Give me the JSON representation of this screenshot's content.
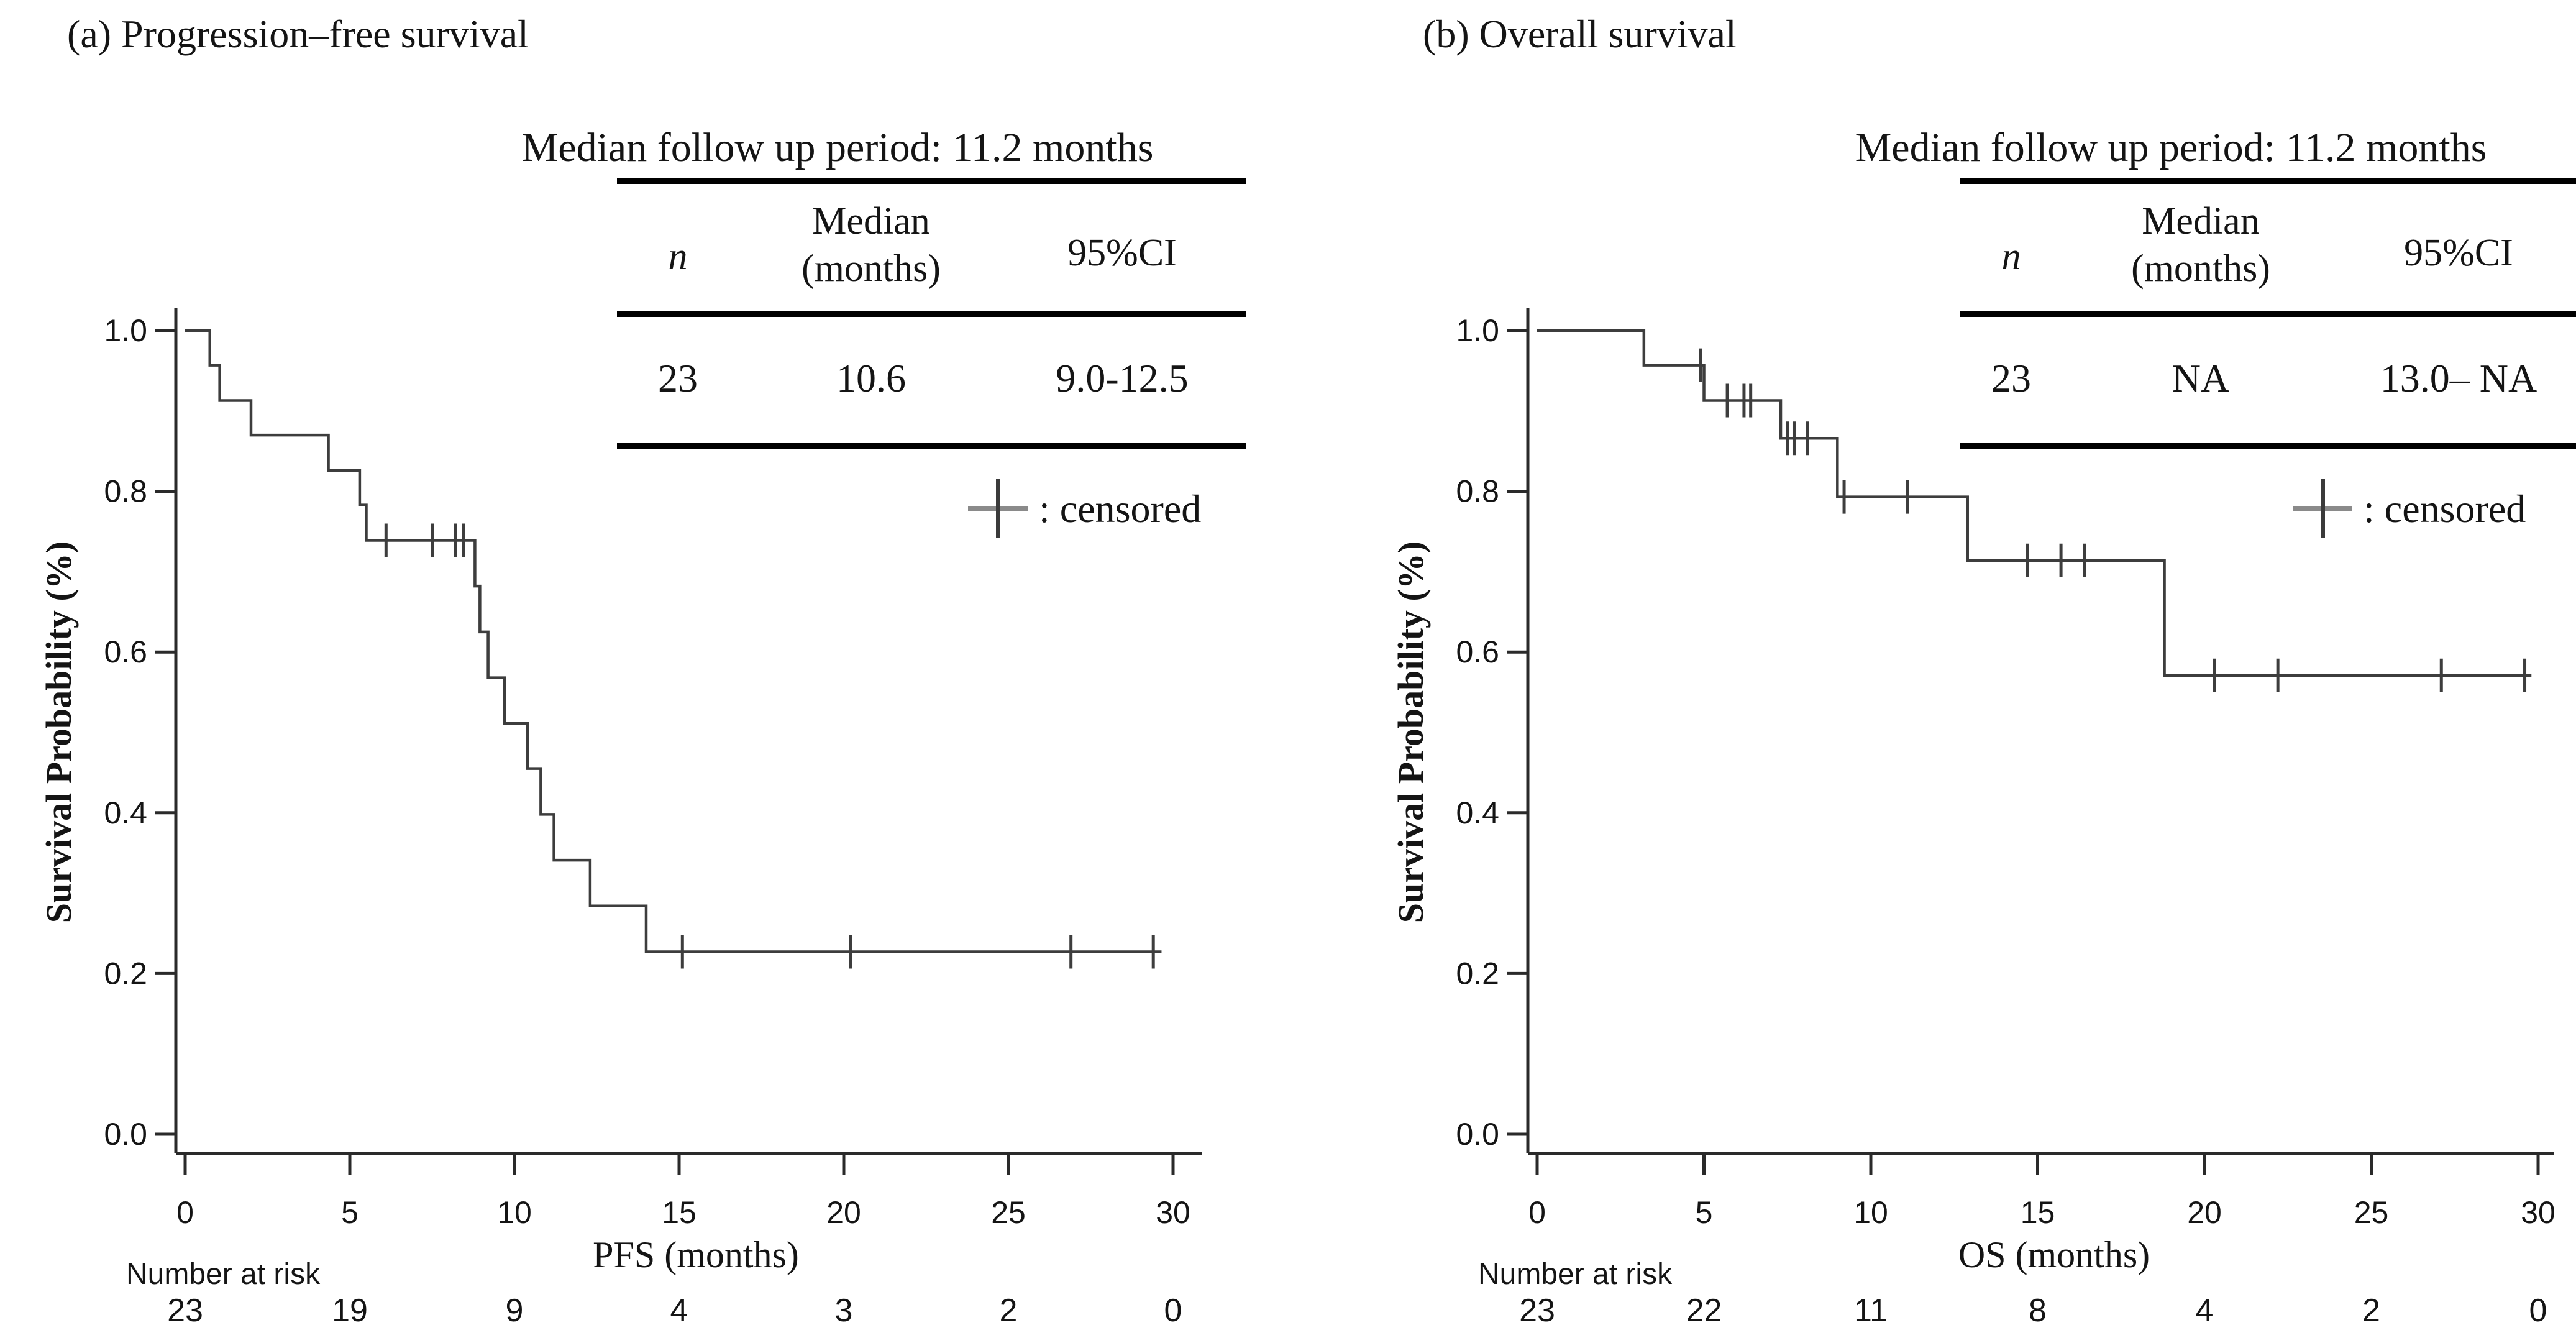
{
  "figure": {
    "background": "#ffffff",
    "curve_color": "#3d3d3d",
    "axis_color": "#2a2a2a",
    "text_color": "#141414"
  },
  "chart_data": [
    {
      "type": "line",
      "subtype": "kaplan-meier-step",
      "panel": "a",
      "title": "(a) Progression–free survival",
      "annotation": "Median follow up period: 11.2 months",
      "table": {
        "col_n": "n",
        "col_median_1": "Median",
        "col_median_2": "(months)",
        "col_ci": "95%CI",
        "rows": [
          {
            "n": "23",
            "median": "10.6",
            "ci": "9.0-12.5"
          }
        ]
      },
      "legend": {
        "marker": "plus-censored",
        "label": ": censored"
      },
      "xlabel": "PFS (months)",
      "ylabel": "Survival Probability (%)",
      "xlim": [
        0,
        31
      ],
      "ylim": [
        0,
        1.0
      ],
      "grid": false,
      "xticks": [
        "0",
        "5",
        "10",
        "15",
        "20",
        "25",
        "30"
      ],
      "yticks": [
        "1.0",
        "0.8",
        "0.6",
        "0.4",
        "0.2",
        "0.0"
      ],
      "steps": [
        [
          0,
          1.0
        ],
        [
          0.75,
          0.957
        ],
        [
          1.05,
          0.913
        ],
        [
          2.0,
          0.87
        ],
        [
          4.35,
          0.826
        ],
        [
          5.3,
          0.783
        ],
        [
          5.5,
          0.739
        ],
        [
          8.8,
          0.682
        ],
        [
          8.95,
          0.625
        ],
        [
          9.2,
          0.568
        ],
        [
          9.7,
          0.511
        ],
        [
          10.4,
          0.455
        ],
        [
          10.8,
          0.398
        ],
        [
          11.2,
          0.341
        ],
        [
          12.3,
          0.284
        ],
        [
          14.0,
          0.227
        ]
      ],
      "end_time": 29.65,
      "censored": [
        [
          6.1,
          0.739
        ],
        [
          7.5,
          0.739
        ],
        [
          8.2,
          0.739
        ],
        [
          8.45,
          0.739
        ],
        [
          15.1,
          0.227
        ],
        [
          20.2,
          0.227
        ],
        [
          26.9,
          0.227
        ],
        [
          29.4,
          0.227
        ]
      ],
      "at_risk": {
        "label": "Number at risk",
        "times": [
          0,
          5,
          10,
          15,
          20,
          25,
          30
        ],
        "counts": [
          "23",
          "19",
          "9",
          "4",
          "3",
          "2",
          "0"
        ]
      }
    },
    {
      "type": "line",
      "subtype": "kaplan-meier-step",
      "panel": "b",
      "title": "(b) Overall survival",
      "annotation": "Median follow up period: 11.2 months",
      "table": {
        "col_n": "n",
        "col_median_1": "Median",
        "col_median_2": "(months)",
        "col_ci": "95%CI",
        "rows": [
          {
            "n": "23",
            "median": "NA",
            "ci": "13.0– NA"
          }
        ]
      },
      "legend": {
        "marker": "plus-censored",
        "label": ": censored"
      },
      "xlabel": "OS (months)",
      "ylabel": "Survival Probability (%)",
      "xlim": [
        0,
        31
      ],
      "ylim": [
        0,
        1.0
      ],
      "grid": false,
      "xticks": [
        "0",
        "5",
        "10",
        "15",
        "20",
        "25",
        "30"
      ],
      "yticks": [
        "1.0",
        "0.8",
        "0.6",
        "0.4",
        "0.2",
        "0.0"
      ],
      "steps": [
        [
          0,
          1.0
        ],
        [
          3.2,
          0.957
        ],
        [
          5.0,
          0.913
        ],
        [
          7.3,
          0.866
        ],
        [
          9.0,
          0.793
        ],
        [
          12.9,
          0.714
        ],
        [
          18.8,
          0.571
        ]
      ],
      "end_time": 29.8,
      "censored": [
        [
          4.9,
          0.957
        ],
        [
          5.7,
          0.913
        ],
        [
          6.2,
          0.913
        ],
        [
          6.4,
          0.913
        ],
        [
          7.5,
          0.866
        ],
        [
          7.7,
          0.866
        ],
        [
          8.1,
          0.866
        ],
        [
          9.2,
          0.793
        ],
        [
          11.1,
          0.793
        ],
        [
          14.7,
          0.714
        ],
        [
          15.7,
          0.714
        ],
        [
          16.4,
          0.714
        ],
        [
          20.3,
          0.571
        ],
        [
          22.2,
          0.571
        ],
        [
          27.1,
          0.571
        ],
        [
          29.6,
          0.571
        ]
      ],
      "at_risk": {
        "label": "Number at risk",
        "times": [
          0,
          5,
          10,
          15,
          20,
          25,
          30
        ],
        "counts": [
          "23",
          "22",
          "11",
          "8",
          "4",
          "2",
          "0"
        ]
      }
    }
  ]
}
